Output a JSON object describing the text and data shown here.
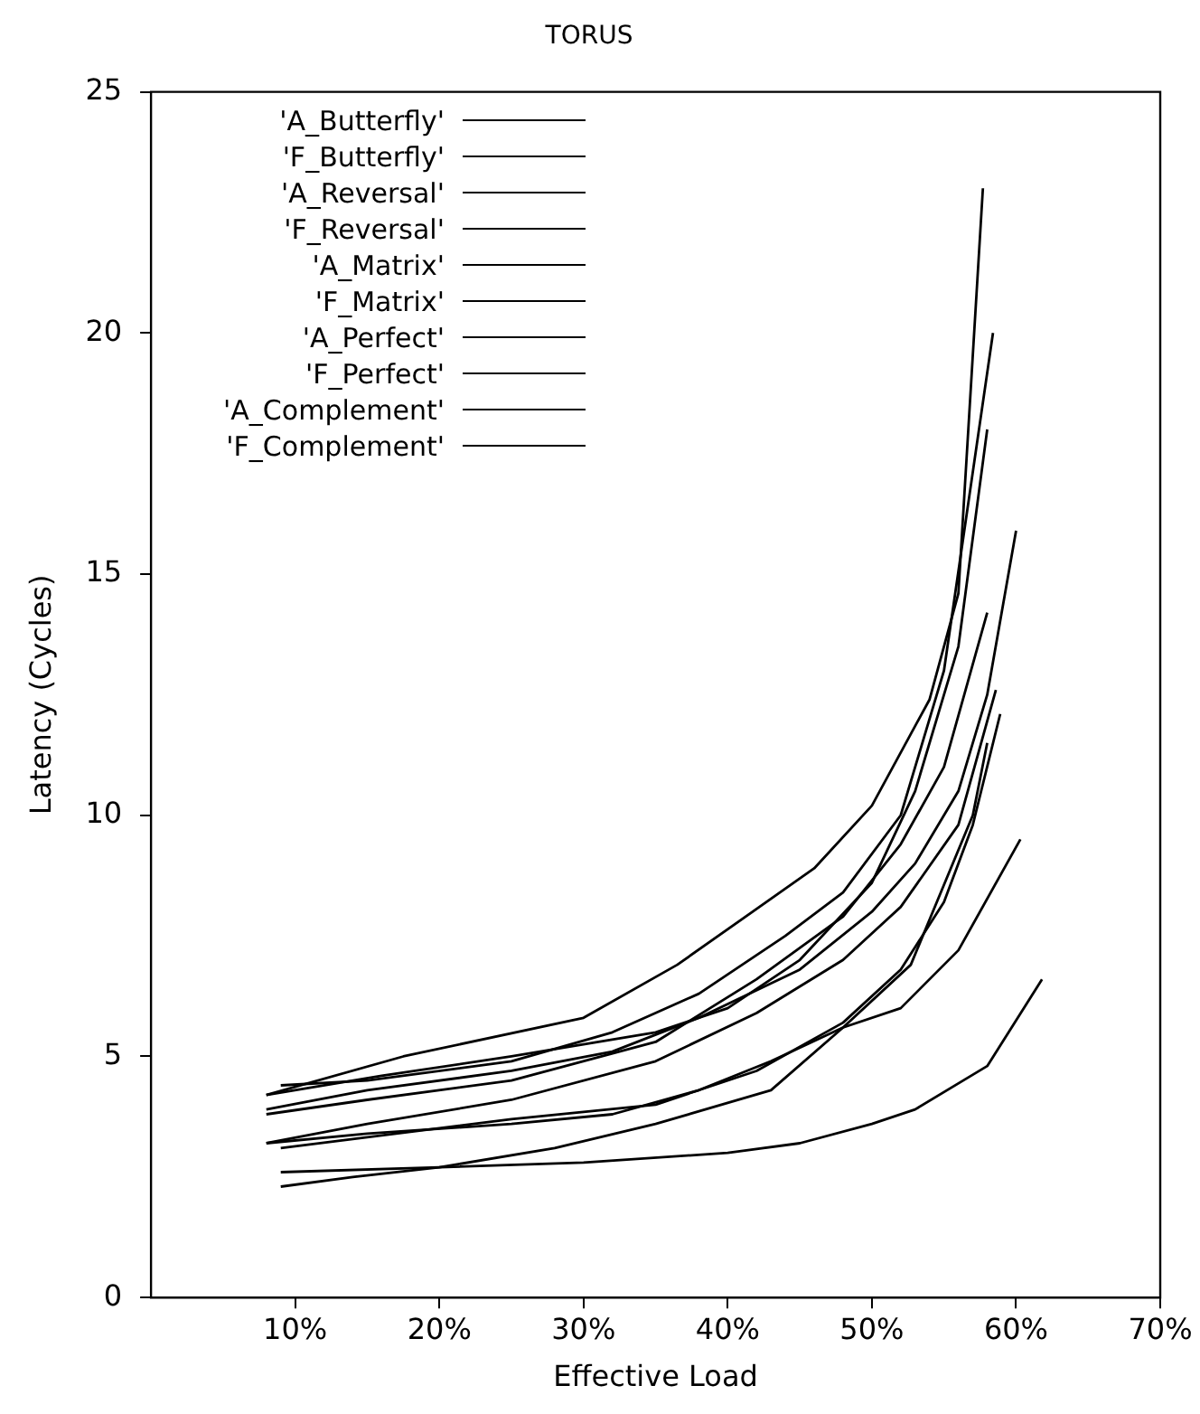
{
  "chart_data": {
    "type": "line",
    "title": "TORUS",
    "xlabel": "Effective Load",
    "ylabel": "Latency (Cycles)",
    "xlim": [
      0,
      70
    ],
    "ylim": [
      0,
      25
    ],
    "xticks": [
      {
        "value": 10,
        "label": "10%"
      },
      {
        "value": 20,
        "label": "20%"
      },
      {
        "value": 30,
        "label": "30%"
      },
      {
        "value": 40,
        "label": "40%"
      },
      {
        "value": 50,
        "label": "50%"
      },
      {
        "value": 60,
        "label": "60%"
      },
      {
        "value": 70,
        "label": "70%"
      }
    ],
    "yticks": [
      0,
      5,
      10,
      15,
      20,
      25
    ],
    "grid": false,
    "legend": "top",
    "marker": "none",
    "line_style": "solid",
    "series": [
      {
        "name": "'A_Butterfly'",
        "color": "#000000",
        "x": [
          8,
          17.5,
          30,
          36.5,
          46,
          50,
          54,
          56,
          57.7
        ],
        "values": [
          4.2,
          5.0,
          5.8,
          6.9,
          8.9,
          10.2,
          12.4,
          14.6,
          23
        ]
      },
      {
        "name": "'F_Butterfly'",
        "color": "#000000",
        "x": [
          9,
          15,
          25,
          32,
          38,
          44,
          48,
          52,
          55,
          58.4
        ],
        "values": [
          4.4,
          4.5,
          4.9,
          5.5,
          6.3,
          7.5,
          8.4,
          10.0,
          13,
          20
        ]
      },
      {
        "name": "'A_Reversal'",
        "color": "#000000",
        "x": [
          8,
          15,
          25,
          32,
          38,
          45,
          50,
          53,
          56,
          58,
          60
        ],
        "values": [
          3.9,
          4.3,
          4.7,
          5.1,
          5.8,
          6.8,
          8.0,
          9.0,
          10.5,
          12.5,
          15.9
        ]
      },
      {
        "name": "'F_Reversal'",
        "color": "#000000",
        "x": [
          8,
          15,
          25,
          35,
          42,
          48,
          52,
          55,
          58
        ],
        "values": [
          3.8,
          4.1,
          4.5,
          5.3,
          6.6,
          7.9,
          9.4,
          11.0,
          14.2
        ]
      },
      {
        "name": "'A_Matrix'",
        "color": "#000000",
        "x": [
          8,
          15,
          25,
          35,
          42,
          48,
          52,
          56,
          58.6
        ],
        "values": [
          3.2,
          3.6,
          4.1,
          4.9,
          5.9,
          7.0,
          8.1,
          9.8,
          12.6
        ]
      },
      {
        "name": "'F_Matrix'",
        "color": "#000000",
        "x": [
          9,
          17,
          25,
          35,
          42,
          48,
          52,
          55,
          57,
          58.9
        ],
        "values": [
          3.1,
          3.4,
          3.7,
          4.0,
          4.7,
          5.7,
          6.8,
          8.2,
          9.8,
          12.1
        ]
      },
      {
        "name": "'A_Perfect'",
        "color": "#000000",
        "x": [
          8,
          15,
          25,
          32,
          38,
          43,
          48,
          52,
          56,
          60.3
        ],
        "values": [
          3.2,
          3.4,
          3.6,
          3.8,
          4.3,
          4.9,
          5.6,
          6.0,
          7.2,
          9.5
        ]
      },
      {
        "name": "'F_Perfect'",
        "color": "#000000",
        "x": [
          9,
          20,
          30,
          40,
          45,
          50,
          53,
          58,
          61.8
        ],
        "values": [
          2.6,
          2.7,
          2.8,
          3.0,
          3.2,
          3.6,
          3.9,
          4.8,
          6.6
        ]
      },
      {
        "name": "'A_Complement'",
        "color": "#000000",
        "x": [
          9,
          14,
          20,
          28,
          35,
          43,
          48,
          52.7,
          57,
          58
        ],
        "values": [
          2.3,
          2.5,
          2.7,
          3.1,
          3.6,
          4.3,
          5.6,
          6.9,
          10,
          11.5
        ]
      },
      {
        "name": "'F_Complement'",
        "color": "#000000",
        "x": [
          8,
          16,
          25,
          35,
          40,
          45,
          50,
          53,
          56,
          58
        ],
        "values": [
          4.2,
          4.6,
          5.0,
          5.5,
          6.0,
          7.0,
          8.6,
          10.5,
          13.5,
          18
        ]
      }
    ]
  }
}
